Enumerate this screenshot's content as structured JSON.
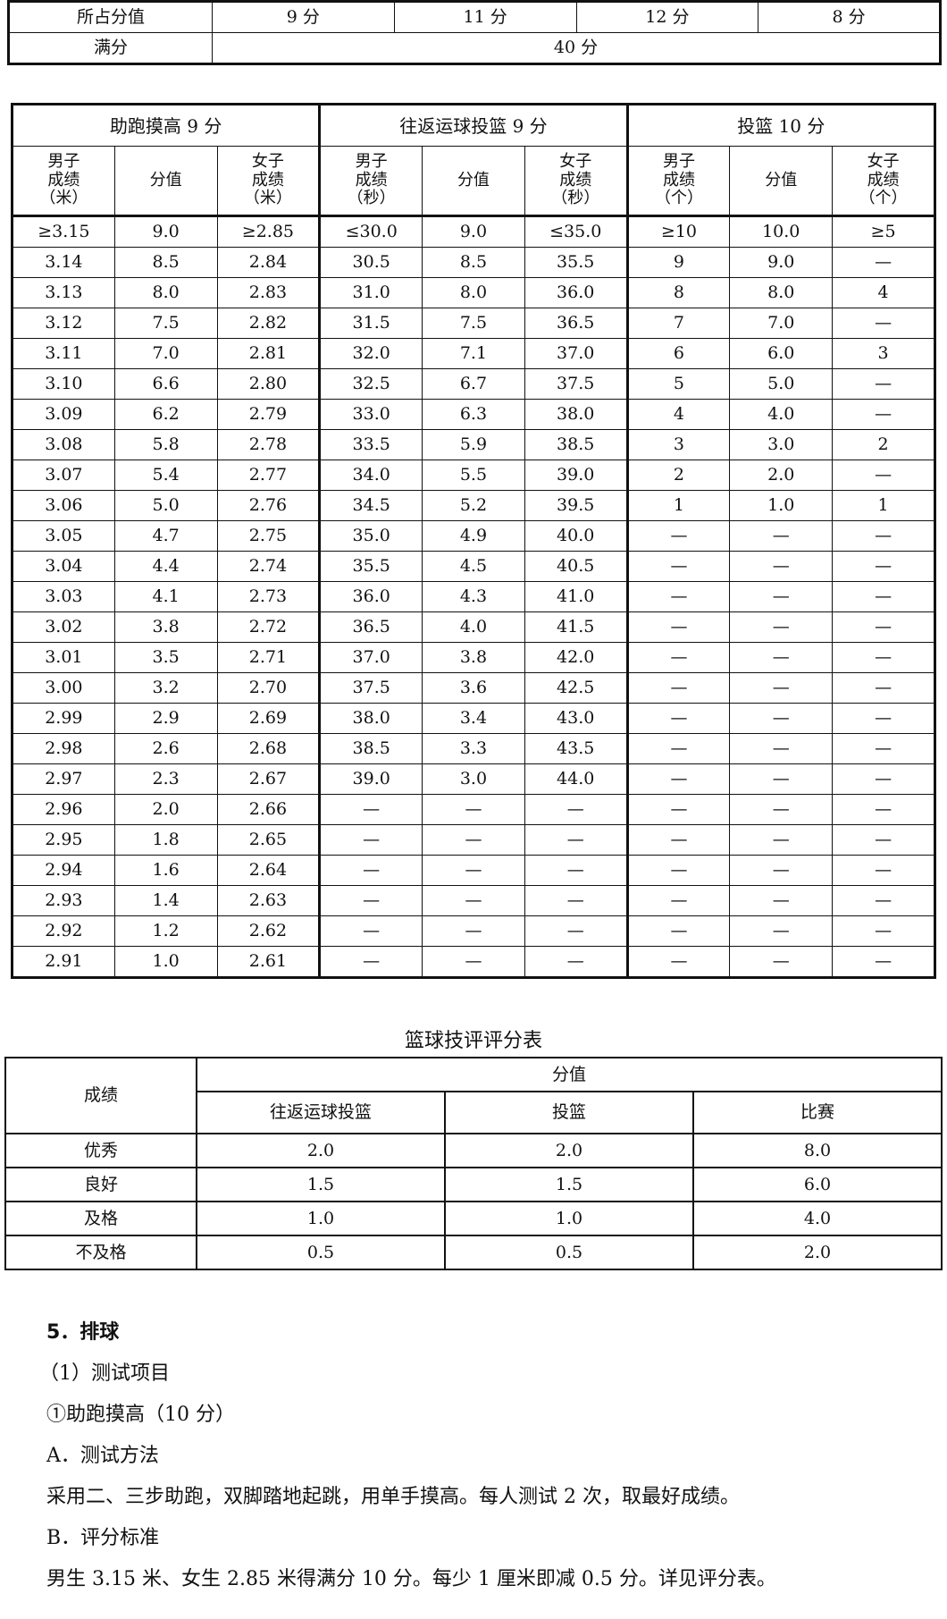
{
  "table1": {
    "rows": [
      [
        "所占分值",
        "9 分",
        "11 分",
        "12 分",
        "8 分"
      ]
    ],
    "full_label": "满分",
    "full_value": "40 分"
  },
  "table2": {
    "groups": [
      "助跑摸高 9 分",
      "往返运球投篮 9 分",
      "投篮 10 分"
    ],
    "subheaders": [
      "男子\n成绩\n（米）",
      "分值",
      "女子\n成绩\n（米）",
      "男子\n成绩\n（秒）",
      "分值",
      "女子\n成绩\n（秒）",
      "男子\n成绩\n（个）",
      "分值",
      "女子\n成绩\n（个）"
    ],
    "rows": [
      [
        "≥3.15",
        "9.0",
        "≥2.85",
        "≤30.0",
        "9.0",
        "≤35.0",
        "≥10",
        "10.0",
        "≥5"
      ],
      [
        "3.14",
        "8.5",
        "2.84",
        "30.5",
        "8.5",
        "35.5",
        "9",
        "9.0",
        "—"
      ],
      [
        "3.13",
        "8.0",
        "2.83",
        "31.0",
        "8.0",
        "36.0",
        "8",
        "8.0",
        "4"
      ],
      [
        "3.12",
        "7.5",
        "2.82",
        "31.5",
        "7.5",
        "36.5",
        "7",
        "7.0",
        "—"
      ],
      [
        "3.11",
        "7.0",
        "2.81",
        "32.0",
        "7.1",
        "37.0",
        "6",
        "6.0",
        "3"
      ],
      [
        "3.10",
        "6.6",
        "2.80",
        "32.5",
        "6.7",
        "37.5",
        "5",
        "5.0",
        "—"
      ],
      [
        "3.09",
        "6.2",
        "2.79",
        "33.0",
        "6.3",
        "38.0",
        "4",
        "4.0",
        "—"
      ],
      [
        "3.08",
        "5.8",
        "2.78",
        "33.5",
        "5.9",
        "38.5",
        "3",
        "3.0",
        "2"
      ],
      [
        "3.07",
        "5.4",
        "2.77",
        "34.0",
        "5.5",
        "39.0",
        "2",
        "2.0",
        "—"
      ],
      [
        "3.06",
        "5.0",
        "2.76",
        "34.5",
        "5.2",
        "39.5",
        "1",
        "1.0",
        "1"
      ],
      [
        "3.05",
        "4.7",
        "2.75",
        "35.0",
        "4.9",
        "40.0",
        "—",
        "—",
        "—"
      ],
      [
        "3.04",
        "4.4",
        "2.74",
        "35.5",
        "4.5",
        "40.5",
        "—",
        "—",
        "—"
      ],
      [
        "3.03",
        "4.1",
        "2.73",
        "36.0",
        "4.3",
        "41.0",
        "—",
        "—",
        "—"
      ],
      [
        "3.02",
        "3.8",
        "2.72",
        "36.5",
        "4.0",
        "41.5",
        "—",
        "—",
        "—"
      ],
      [
        "3.01",
        "3.5",
        "2.71",
        "37.0",
        "3.8",
        "42.0",
        "—",
        "—",
        "—"
      ],
      [
        "3.00",
        "3.2",
        "2.70",
        "37.5",
        "3.6",
        "42.5",
        "—",
        "—",
        "—"
      ],
      [
        "2.99",
        "2.9",
        "2.69",
        "38.0",
        "3.4",
        "43.0",
        "—",
        "—",
        "—"
      ],
      [
        "2.98",
        "2.6",
        "2.68",
        "38.5",
        "3.3",
        "43.5",
        "—",
        "—",
        "—"
      ],
      [
        "2.97",
        "2.3",
        "2.67",
        "39.0",
        "3.0",
        "44.0",
        "—",
        "—",
        "—"
      ],
      [
        "2.96",
        "2.0",
        "2.66",
        "—",
        "—",
        "—",
        "—",
        "—",
        "—"
      ],
      [
        "2.95",
        "1.8",
        "2.65",
        "—",
        "—",
        "—",
        "—",
        "—",
        "—"
      ],
      [
        "2.94",
        "1.6",
        "2.64",
        "—",
        "—",
        "—",
        "—",
        "—",
        "—"
      ],
      [
        "2.93",
        "1.4",
        "2.63",
        "—",
        "—",
        "—",
        "—",
        "—",
        "—"
      ],
      [
        "2.92",
        "1.2",
        "2.62",
        "—",
        "—",
        "—",
        "—",
        "—",
        "—"
      ],
      [
        "2.91",
        "1.0",
        "2.61",
        "—",
        "—",
        "—",
        "—",
        "—",
        "—"
      ]
    ]
  },
  "table3": {
    "title": "篮球技评评分表",
    "corner": "成绩",
    "group": "分值",
    "columns": [
      "往返运球投篮",
      "投篮",
      "比赛"
    ],
    "rows": [
      [
        "优秀",
        "2.0",
        "2.0",
        "8.0"
      ],
      [
        "良好",
        "1.5",
        "1.5",
        "6.0"
      ],
      [
        "及格",
        "1.0",
        "1.0",
        "4.0"
      ],
      [
        "不及格",
        "0.5",
        "0.5",
        "2.0"
      ]
    ]
  },
  "text": {
    "heading": "5．排球",
    "lines": [
      "（1）测试项目",
      "①助跑摸高（10 分）",
      "A．测试方法",
      "采用二、三步助跑，双脚踏地起跳，用单手摸高。每人测试 2 次，取最好成绩。",
      "B．评分标准",
      "男生 3.15 米、女生 2.85 米得满分 10 分。每少 1 厘米即减 0.5 分。详见评分表。"
    ]
  }
}
